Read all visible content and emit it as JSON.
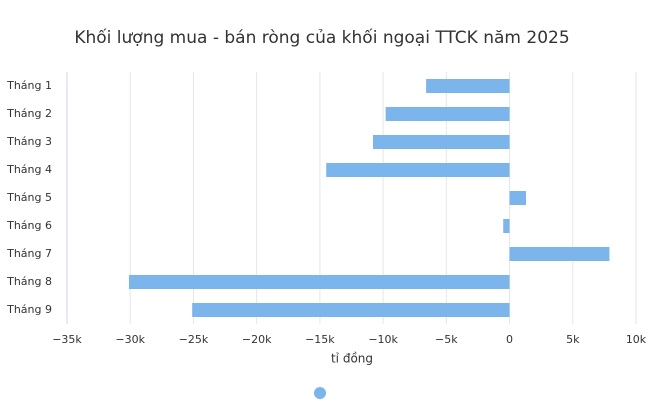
{
  "chart_data": {
    "type": "bar",
    "orientation": "horizontal",
    "title": "Khối lượng mua - bán ròng của khối ngoại TTCK năm 2025",
    "x_label": "tỉ đồng",
    "categories": [
      "Tháng 1",
      "Tháng 2",
      "Tháng 3",
      "Tháng 4",
      "Tháng 5",
      "Tháng 6",
      "Tháng 7",
      "Tháng 8",
      "Tháng 9"
    ],
    "series": [
      {
        "color": "#7cb5ec",
        "values": [
          -6600,
          -9800,
          -10800,
          -14500,
          1300,
          -500,
          7900,
          -30100,
          -25100
        ]
      }
    ],
    "xlim": [
      -35000,
      10000
    ],
    "xticks": [
      {
        "value": -35000,
        "label": "−35k"
      },
      {
        "value": -30000,
        "label": "−30k"
      },
      {
        "value": -25000,
        "label": "−25k"
      },
      {
        "value": -20000,
        "label": "−20k"
      },
      {
        "value": -15000,
        "label": "−15k"
      },
      {
        "value": -10000,
        "label": "−10k"
      },
      {
        "value": -5000,
        "label": "−5k"
      },
      0,
      {
        "value": 5000,
        "label": "5k"
      },
      {
        "value": 10000,
        "label": "10k"
      }
    ],
    "grid": true
  }
}
